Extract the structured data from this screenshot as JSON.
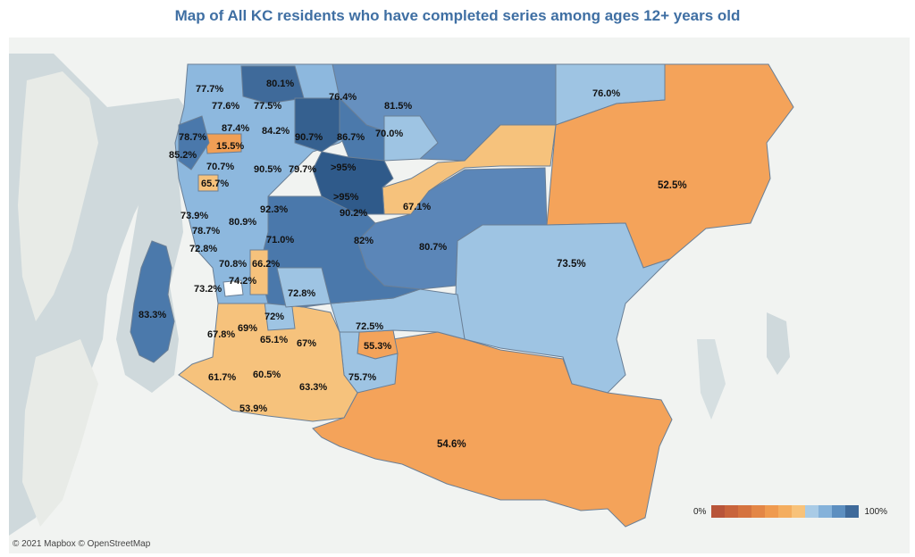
{
  "title": "Map of All KC residents who have completed series among ages 12+ years old",
  "attribution": "© 2021 Mapbox © OpenStreetMap",
  "legend": {
    "min_label": "0%",
    "max_label": "100%",
    "swatches": [
      "#b8553a",
      "#c8643c",
      "#d5733f",
      "#e38646",
      "#ef9a4f",
      "#f4ad5f",
      "#f8c27a",
      "#a9cbe6",
      "#85b2da",
      "#5d8fc0",
      "#3f6a9a"
    ]
  },
  "labels": [
    {
      "id": "77-7",
      "text": "77.7%"
    },
    {
      "id": "80-1",
      "text": "80.1%"
    },
    {
      "id": "76-4",
      "text": "76.4%"
    },
    {
      "id": "81-5",
      "text": "81.5%"
    },
    {
      "id": "76-0",
      "text": "76.0%"
    },
    {
      "id": "77-6",
      "text": "77.6%"
    },
    {
      "id": "77-5",
      "text": "77.5%"
    },
    {
      "id": "87-4",
      "text": "87.4%"
    },
    {
      "id": "84-2",
      "text": "84.2%"
    },
    {
      "id": "90-7",
      "text": "90.7%"
    },
    {
      "id": "86-7",
      "text": "86.7%"
    },
    {
      "id": "70-0",
      "text": "70.0%"
    },
    {
      "id": "78-7a",
      "text": "78.7%"
    },
    {
      "id": "15-5",
      "text": "15.5%"
    },
    {
      "id": "85-2",
      "text": "85.2%"
    },
    {
      "id": "70-7",
      "text": "70.7%"
    },
    {
      "id": "90-5",
      "text": "90.5%"
    },
    {
      "id": "79-7",
      "text": "79.7%"
    },
    {
      "id": "gt95a",
      "text": ">95%"
    },
    {
      "id": "52-5",
      "text": "52.5%"
    },
    {
      "id": "65-7",
      "text": "65.7%"
    },
    {
      "id": "gt95b",
      "text": ">95%"
    },
    {
      "id": "67-1",
      "text": "67.1%"
    },
    {
      "id": "73-9",
      "text": "73.9%"
    },
    {
      "id": "80-9",
      "text": "80.9%"
    },
    {
      "id": "92-3",
      "text": "92.3%"
    },
    {
      "id": "90-2",
      "text": "90.2%"
    },
    {
      "id": "78-7b",
      "text": "78.7%"
    },
    {
      "id": "71-0",
      "text": "71.0%"
    },
    {
      "id": "82",
      "text": "82%"
    },
    {
      "id": "72-8a",
      "text": "72.8%"
    },
    {
      "id": "80-7",
      "text": "80.7%"
    },
    {
      "id": "70-8",
      "text": "70.8%"
    },
    {
      "id": "66-2",
      "text": "66.2%"
    },
    {
      "id": "73-5",
      "text": "73.5%"
    },
    {
      "id": "74-2",
      "text": "74.2%"
    },
    {
      "id": "73-2",
      "text": "73.2%"
    },
    {
      "id": "72-8b",
      "text": "72.8%"
    },
    {
      "id": "83-3",
      "text": "83.3%"
    },
    {
      "id": "72",
      "text": "72%"
    },
    {
      "id": "69",
      "text": "69%"
    },
    {
      "id": "72-5",
      "text": "72.5%"
    },
    {
      "id": "67-8",
      "text": "67.8%"
    },
    {
      "id": "65-1",
      "text": "65.1%"
    },
    {
      "id": "67",
      "text": "67%"
    },
    {
      "id": "55-3",
      "text": "55.3%"
    },
    {
      "id": "61-7",
      "text": "61.7%"
    },
    {
      "id": "60-5",
      "text": "60.5%"
    },
    {
      "id": "75-7",
      "text": "75.7%"
    },
    {
      "id": "63-3",
      "text": "63.3%"
    },
    {
      "id": "53-9",
      "text": "53.9%"
    },
    {
      "id": "54-6",
      "text": "54.6%"
    }
  ]
}
